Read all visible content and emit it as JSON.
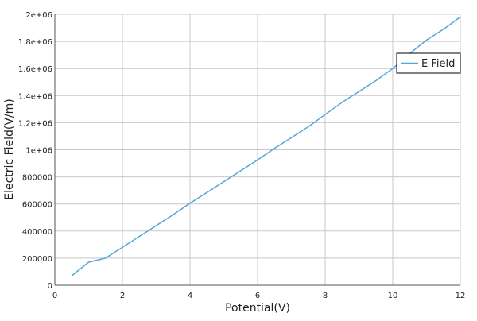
{
  "chart_data": {
    "type": "line",
    "title": "",
    "xlabel": "Potential(V)",
    "ylabel": "Electric Field(V/m)",
    "xlim": [
      0,
      12
    ],
    "ylim": [
      0,
      2000000
    ],
    "x_ticks": [
      "0",
      "2",
      "4",
      "6",
      "8",
      "10",
      "12"
    ],
    "y_ticks": [
      "0",
      "200000",
      "400000",
      "600000",
      "800000",
      "1e+06",
      "1.2e+06",
      "1.4e+06",
      "1.6e+06",
      "1.8e+06",
      "2e+06"
    ],
    "grid": true,
    "legend_position": "top-right",
    "series": [
      {
        "name": "E Field",
        "color": "#4fa8d8",
        "x": [
          0.5,
          1.0,
          1.5,
          2.0,
          2.5,
          3.0,
          3.5,
          4.0,
          4.5,
          5.0,
          5.5,
          6.0,
          6.5,
          7.0,
          7.5,
          8.0,
          8.5,
          9.0,
          9.5,
          10.0,
          10.5,
          11.0,
          11.5,
          12.0
        ],
        "y": [
          70000,
          170000,
          200000,
          280000,
          360000,
          440000,
          520000,
          605000,
          685000,
          765000,
          845000,
          925000,
          1010000,
          1090000,
          1170000,
          1260000,
          1350000,
          1430000,
          1510000,
          1600000,
          1710000,
          1810000,
          1890000,
          1980000
        ]
      }
    ]
  }
}
